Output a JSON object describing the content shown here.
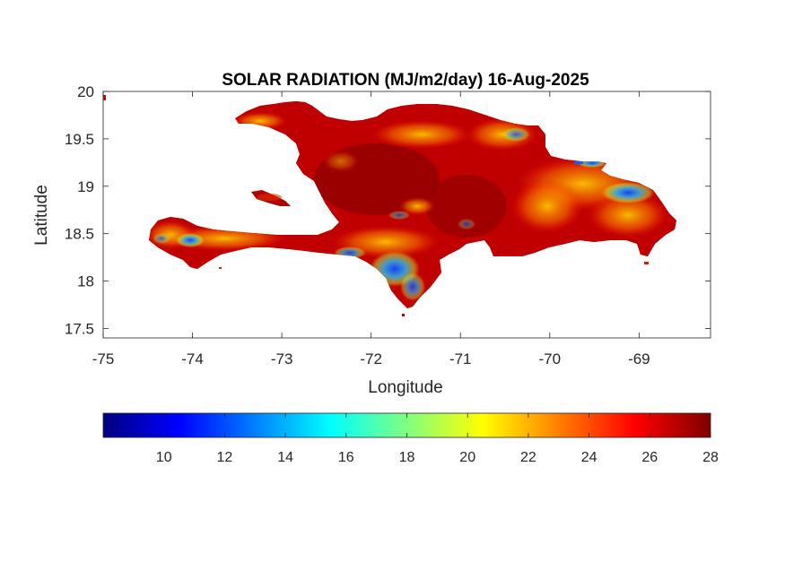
{
  "map": {
    "title": "SOLAR RADIATION (MJ/m2/day) 16-Aug-2025",
    "xlabel": "Longitude",
    "ylabel": "Latitude",
    "xlim": [
      -75,
      -68.2
    ],
    "ylim": [
      17.4,
      20
    ],
    "x_ticks": [
      -75,
      -74,
      -73,
      -72,
      -71,
      -70,
      -69
    ],
    "y_ticks": [
      17.5,
      18,
      18.5,
      19,
      19.5,
      20
    ],
    "x_tick_labels": [
      "-75",
      "-74",
      "-73",
      "-72",
      "-71",
      "-70",
      "-69"
    ],
    "y_tick_labels": [
      "17.5",
      "18",
      "18.5",
      "19",
      "19.5",
      "20"
    ],
    "colormap": "jet",
    "colormap_stops": [
      "#00007f",
      "#0000ff",
      "#00ffff",
      "#ffff00",
      "#ff0000",
      "#7f0000"
    ],
    "region": "Hispaniola (Haiti and Dominican Republic)",
    "dominant_value_range": [
      24,
      28
    ],
    "low_value_areas": [
      "eastern Dominican Republic near -69",
      "southern coast near -71.8, 18.2",
      "southwest peninsula near -74.1, 18.4"
    ]
  },
  "colorbar": {
    "orientation": "horizontal",
    "range": [
      8,
      28
    ],
    "ticks": [
      10,
      12,
      14,
      16,
      18,
      20,
      22,
      24,
      26,
      28
    ],
    "tick_labels": [
      "10",
      "12",
      "14",
      "16",
      "18",
      "20",
      "22",
      "24",
      "26",
      "28"
    ]
  }
}
